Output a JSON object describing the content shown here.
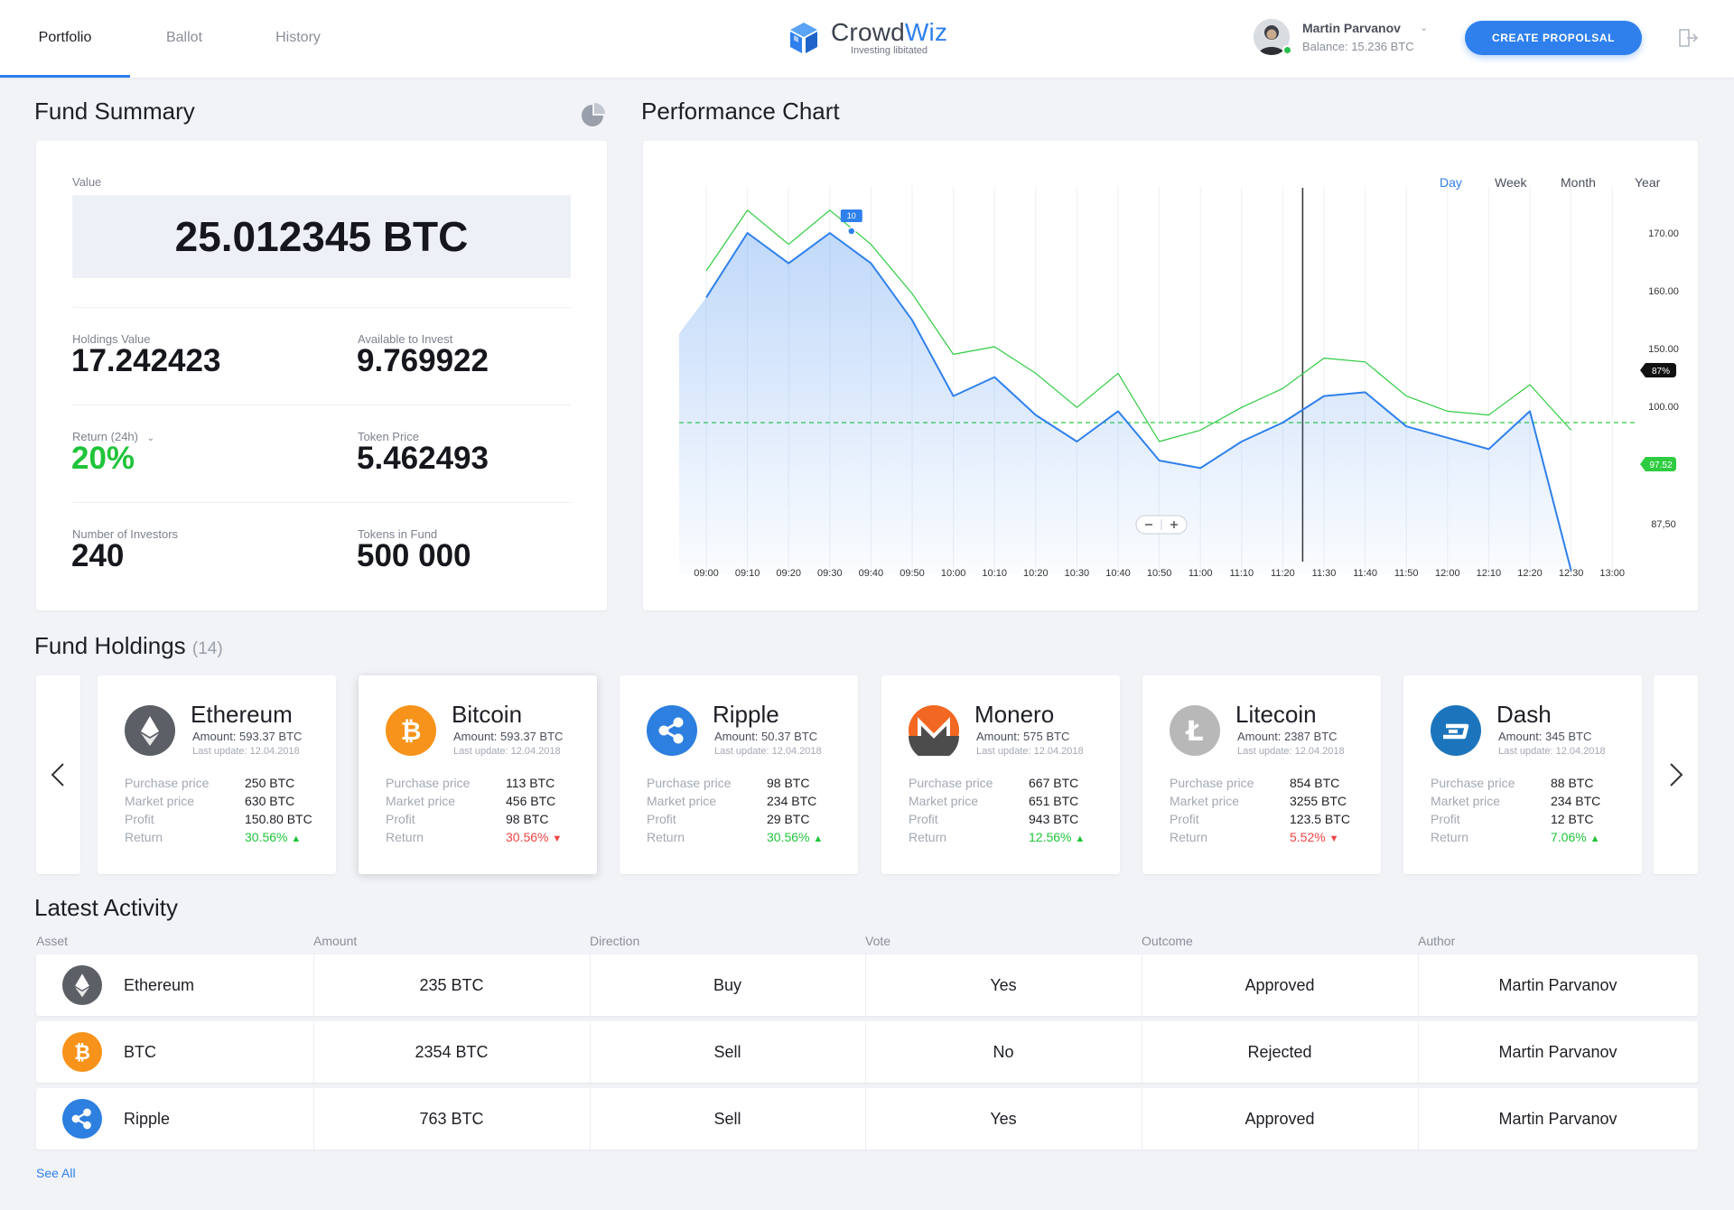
{
  "header": {
    "tabs": [
      {
        "label": "Portfolio",
        "active": true
      },
      {
        "label": "Ballot",
        "active": false
      },
      {
        "label": "History",
        "active": false
      }
    ],
    "logo": {
      "name_prefix": "Crowd",
      "name_suffix": "Wiz",
      "tagline": "Investing libitated"
    },
    "user": {
      "name": "Martin Parvanov",
      "balance": "Balance: 15.236 BTC",
      "online": true
    },
    "create_label": "CREATE PROPOLSAL",
    "accent_color": "#2f80ed"
  },
  "fund_summary": {
    "title": "Fund Summary",
    "value_label": "Value",
    "value": "25.012345 BTC",
    "holdings_label": "Holdings Value",
    "holdings": "17.242423",
    "available_label": "Available to Invest",
    "available": "9.769922",
    "return_label": "Return (24h)",
    "return": "20%",
    "token_price_label": "Token Price",
    "token_price": "5.462493",
    "investors_label": "Number of Investors",
    "investors": "240",
    "tokens_label": "Tokens in Fund",
    "tokens": "500 000",
    "positive_color": "#20c43a"
  },
  "performance": {
    "title": "Performance Chart",
    "ranges": [
      "Day",
      "Week",
      "Month",
      "Year"
    ],
    "active_range": "Day"
  },
  "chart_data": {
    "type": "line",
    "x": [
      "09:00",
      "09:10",
      "09:20",
      "09:30",
      "09:40",
      "09:50",
      "10:00",
      "10:10",
      "10:20",
      "10:30",
      "10:40",
      "10:50",
      "11:00",
      "11:10",
      "11:20",
      "11:30",
      "11:40",
      "11:50",
      "12:00",
      "12:10",
      "12:20",
      "12:30",
      "13:00"
    ],
    "y_ticks": [
      "170.00",
      "160.00",
      "150.00",
      "100.00",
      "87,50"
    ],
    "series": [
      {
        "values": [
          151,
          168,
          160,
          168,
          160,
          145,
          125,
          130,
          120,
          113,
          121,
          108,
          106,
          113,
          118,
          125,
          126,
          117,
          114,
          111,
          121,
          79,
          null
        ],
        "color": "#2f80ed",
        "area": true
      },
      {
        "values": [
          158,
          174,
          165,
          174,
          165,
          152,
          136,
          138,
          131,
          122,
          131,
          113,
          116,
          122,
          127,
          135,
          134,
          125,
          121,
          120,
          128,
          116,
          null
        ],
        "color": "#2ecc40",
        "area": false
      }
    ],
    "pointer_label": "10",
    "right_badges": [
      {
        "label": "87%",
        "color": "#111"
      },
      {
        "label": "97.52",
        "color": "#2ecc40"
      }
    ],
    "reference_value": 118
  },
  "holdings": {
    "title": "Fund Holdings",
    "count": "(14)",
    "purchase_label": "Purchase price",
    "market_label": "Market price",
    "profit_label": "Profit",
    "return_label": "Return",
    "items": [
      {
        "name": "Ethereum",
        "amount": "Amount: 593.37 BTC",
        "update": "Last update: 12.04.2018",
        "purchase": "250 BTC",
        "market": "630 BTC",
        "profit": "150.80 BTC",
        "return": "30.56%",
        "trend": "up",
        "icon": "ethereum-icon",
        "color": "#5c5f66"
      },
      {
        "name": "Bitcoin",
        "amount": "Amount: 593.37 BTC",
        "update": "Last update: 12.04.2018",
        "purchase": "113 BTC",
        "market": "456 BTC",
        "profit": "98 BTC",
        "return": "30.56%",
        "trend": "down",
        "icon": "bitcoin-icon",
        "color": "#f7931a"
      },
      {
        "name": "Ripple",
        "amount": "Amount: 50.37 BTC",
        "update": "Last update: 12.04.2018",
        "purchase": "98 BTC",
        "market": "234 BTC",
        "profit": "29 BTC",
        "return": "30.56%",
        "trend": "up",
        "icon": "ripple-icon",
        "color": "#2d7fe0"
      },
      {
        "name": "Monero",
        "amount": "Amount: 575 BTC",
        "update": "Last update: 12.04.2018",
        "purchase": "667 BTC",
        "market": "651 BTC",
        "profit": "943 BTC",
        "return": "12.56%",
        "trend": "up",
        "icon": "monero-icon",
        "color": "#f26822"
      },
      {
        "name": "Litecoin",
        "amount": "Amount: 2387 BTC",
        "update": "Last update: 12.04.2018",
        "purchase": "854 BTC",
        "market": "3255 BTC",
        "profit": "123.5 BTC",
        "return": "5.52%",
        "trend": "down",
        "icon": "litecoin-icon",
        "color": "#b8b8b8"
      },
      {
        "name": "Dash",
        "amount": "Amount: 345 BTC",
        "update": "Last update: 12.04.2018",
        "purchase": "88 BTC",
        "market": "234 BTC",
        "profit": "12 BTC",
        "return": "7.06%",
        "trend": "up",
        "icon": "dash-icon",
        "color": "#1c75bc"
      }
    ]
  },
  "activity": {
    "title": "Latest Activity",
    "columns": [
      "Asset",
      "Amount",
      "Direction",
      "Vote",
      "Outcome",
      "Author"
    ],
    "rows": [
      {
        "asset": "Ethereum",
        "icon": "ethereum-icon",
        "amount": "235 BTC",
        "direction": "Buy",
        "vote": "Yes",
        "outcome": "Approved",
        "author": "Martin Parvanov"
      },
      {
        "asset": "BTC",
        "icon": "bitcoin-icon",
        "amount": "2354 BTC",
        "direction": "Sell",
        "vote": "No",
        "outcome": "Rejected",
        "author": "Martin Parvanov"
      },
      {
        "asset": "Ripple",
        "icon": "ripple-icon",
        "amount": "763 BTC",
        "direction": "Sell",
        "vote": "Yes",
        "outcome": "Approved",
        "author": "Martin Parvanov"
      }
    ],
    "see_all": "See All"
  }
}
